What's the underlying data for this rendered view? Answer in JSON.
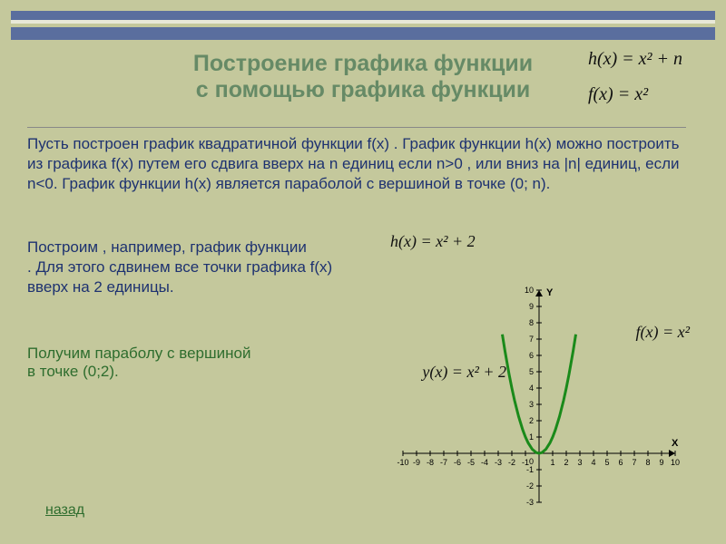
{
  "title": {
    "line1": "Построение графика функции",
    "line2": "с помощью графика функции",
    "color": "#668a66",
    "fontsize": 25
  },
  "formulas": {
    "top1": "h(x) = x² + n",
    "top2": "f(x) = x²",
    "example": "h(x) = x² + 2",
    "chart_f": "f(x) = x²",
    "chart_y": "y(x) = x² + 2"
  },
  "paragraph": "Пусть построен график квадратичной функции   f(x)  . График функции h(x) можно построить из графика f(x) путем его сдвига вверх на n единиц если n>0 , или вниз на |n| единиц, если n<0.  График функции h(x) является параболой с вершиной в точке (0; n).",
  "example_text": {
    "l1": "Построим , например, график функции",
    "l2": "  . Для этого сдвинем все точки графика f(x)",
    "l3": "вверх       на 2 единицы."
  },
  "result": {
    "text": "Получим параболу с вершиной в точке (0;2).",
    "color": "#2e6d2e"
  },
  "back": {
    "label": "назад"
  },
  "chart": {
    "xlim": [
      -10,
      10
    ],
    "ylim": [
      -3,
      10
    ],
    "xtick_step": 1,
    "ytick_step": 1,
    "x_label": "X",
    "y_label": "Y",
    "curve_color": "#1a8a1a",
    "axis_color": "#000000",
    "background": "#c4c89c",
    "curve_points_x": [
      -2.7,
      -2.5,
      -2.2,
      -2.0,
      -1.8,
      -1.5,
      -1.2,
      -1.0,
      -0.8,
      -0.5,
      -0.2,
      0,
      0.2,
      0.5,
      0.8,
      1.0,
      1.2,
      1.5,
      1.8,
      2.0,
      2.2,
      2.5,
      2.7
    ],
    "curve_fn": "x*x"
  }
}
